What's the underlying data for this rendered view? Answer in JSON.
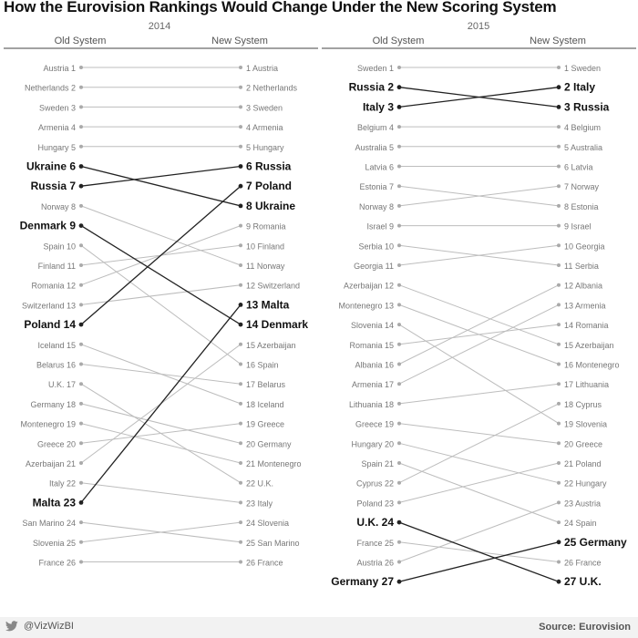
{
  "title": "How the Eurovision Rankings Would Change Under the New Scoring System",
  "footer": {
    "handle": "@VizWizBI",
    "source": "Source: Eurovision",
    "twitter_icon": "twitter-bird-icon"
  },
  "colors": {
    "highlight": "#222222",
    "normal": "#bdbdbd",
    "normal_text": "#777777"
  },
  "chart_data": [
    {
      "type": "slope",
      "year": "2014",
      "left_label": "Old System",
      "right_label": "New System",
      "old": [
        "Austria",
        "Netherlands",
        "Sweden",
        "Armenia",
        "Hungary",
        "Ukraine",
        "Russia",
        "Norway",
        "Denmark",
        "Spain",
        "Finland",
        "Romania",
        "Switzerland",
        "Poland",
        "Iceland",
        "Belarus",
        "U.K.",
        "Germany",
        "Montenegro",
        "Greece",
        "Azerbaijan",
        "Italy",
        "Malta",
        "San Marino",
        "Slovenia",
        "France"
      ],
      "new": [
        "Austria",
        "Netherlands",
        "Sweden",
        "Armenia",
        "Hungary",
        "Russia",
        "Poland",
        "Ukraine",
        "Romania",
        "Finland",
        "Norway",
        "Switzerland",
        "Malta",
        "Denmark",
        "Azerbaijan",
        "Spain",
        "Belarus",
        "Iceland",
        "Greece",
        "Germany",
        "Montenegro",
        "U.K.",
        "Italy",
        "Slovenia",
        "San Marino",
        "France"
      ],
      "highlighted": [
        "Ukraine",
        "Russia",
        "Denmark",
        "Poland",
        "Malta"
      ]
    },
    {
      "type": "slope",
      "year": "2015",
      "left_label": "Old System",
      "right_label": "New System",
      "old": [
        "Sweden",
        "Russia",
        "Italy",
        "Belgium",
        "Australia",
        "Latvia",
        "Estonia",
        "Norway",
        "Israel",
        "Serbia",
        "Georgia",
        "Azerbaijan",
        "Montenegro",
        "Slovenia",
        "Romania",
        "Albania",
        "Armenia",
        "Lithuania",
        "Greece",
        "Hungary",
        "Spain",
        "Cyprus",
        "Poland",
        "U.K.",
        "France",
        "Austria",
        "Germany"
      ],
      "new": [
        "Sweden",
        "Italy",
        "Russia",
        "Belgium",
        "Australia",
        "Latvia",
        "Norway",
        "Estonia",
        "Israel",
        "Georgia",
        "Serbia",
        "Albania",
        "Armenia",
        "Romania",
        "Azerbaijan",
        "Montenegro",
        "Lithuania",
        "Cyprus",
        "Slovenia",
        "Greece",
        "Poland",
        "Hungary",
        "Austria",
        "Spain",
        "Germany",
        "France",
        "U.K."
      ],
      "highlighted": [
        "Russia",
        "Italy",
        "U.K.",
        "Germany"
      ]
    }
  ]
}
